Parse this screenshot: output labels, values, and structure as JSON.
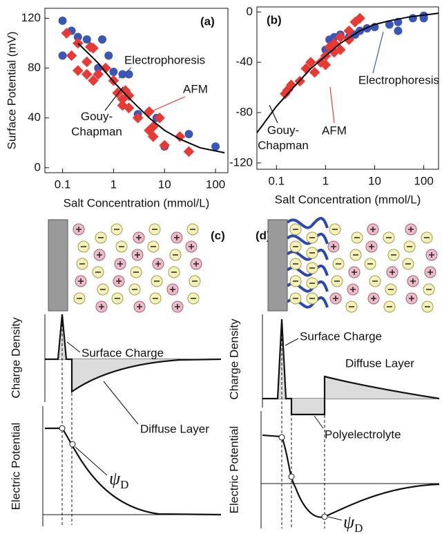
{
  "chart_data": [
    {
      "type": "scatter",
      "panel_label": "(a)",
      "y_label": "Surface Potential (mV)",
      "x_label": "Salt Concentration (mmol/L)",
      "x_scale": "log",
      "xlim": [
        0.045,
        175
      ],
      "ylim": [
        -4,
        128
      ],
      "xticks": [
        0.1,
        1,
        10,
        100
      ],
      "yticks": [
        0,
        40,
        80,
        120
      ],
      "series": [
        {
          "name": "Electrophoresis",
          "color": "#3a57b5",
          "marker": "circle",
          "x": [
            0.1,
            0.1,
            0.15,
            0.2,
            0.3,
            0.5,
            0.6,
            0.8,
            1,
            1.5,
            2,
            3,
            7,
            10,
            30,
            100
          ],
          "values": [
            118,
            90,
            110,
            105,
            103,
            80,
            103,
            90,
            77,
            75,
            75,
            43,
            40,
            17,
            27,
            17
          ]
        },
        {
          "name": "AFM",
          "color": "#e83a35",
          "marker": "diamond",
          "x": [
            0.12,
            0.15,
            0.2,
            0.2,
            0.3,
            0.3,
            0.35,
            0.4,
            0.4,
            0.5,
            0.7,
            1,
            1.2,
            1.5,
            1.5,
            1.7,
            2,
            2,
            3,
            5,
            5,
            6,
            6,
            8,
            10,
            20,
            30
          ],
          "values": [
            108,
            90,
            78,
            100,
            85,
            75,
            97,
            96,
            70,
            75,
            80,
            70,
            60,
            55,
            50,
            62,
            58,
            48,
            40,
            30,
            45,
            33,
            25,
            40,
            18,
            25,
            13
          ]
        },
        {
          "name": "Gouy-Chapman",
          "color": "#000000",
          "marker": "line",
          "x": [
            0.2,
            0.5,
            1,
            2,
            5,
            10,
            20,
            50,
            150
          ],
          "values": [
            100,
            84,
            69,
            56,
            40,
            30,
            23,
            16,
            12
          ]
        }
      ]
    },
    {
      "type": "scatter",
      "panel_label": "(b)",
      "x_label": "Salt Concentration (mmol/L)",
      "x_scale": "log",
      "xlim": [
        0.04,
        200
      ],
      "ylim": [
        -125,
        4
      ],
      "xticks": [
        0.1,
        1,
        10,
        100
      ],
      "yticks": [
        0,
        -40,
        -80,
        -120
      ],
      "series": [
        {
          "name": "Electrophoresis",
          "color": "#3a57b5",
          "marker": "circle",
          "x": [
            1,
            1.2,
            1.5,
            2,
            3,
            4,
            5,
            7,
            10,
            20,
            30,
            30,
            60,
            100,
            100
          ],
          "values": [
            -30,
            -22,
            -20,
            -18,
            -20,
            -18,
            -15,
            -13,
            -12,
            -10,
            -8,
            -15,
            -5,
            -5,
            -3
          ]
        },
        {
          "name": "AFM",
          "color": "#e83a35",
          "marker": "diamond",
          "x": [
            0.15,
            0.17,
            0.2,
            0.3,
            0.4,
            0.5,
            0.6,
            0.8,
            1,
            1,
            1.2,
            1.5,
            1.5,
            2,
            2,
            3,
            3,
            4,
            5
          ],
          "values": [
            -65,
            -62,
            -58,
            -55,
            -45,
            -40,
            -48,
            -40,
            -35,
            -42,
            -28,
            -25,
            -32,
            -20,
            -30,
            -15,
            -22,
            -8,
            -5
          ]
        },
        {
          "name": "Gouy-Chapman",
          "color": "#000000",
          "marker": "line",
          "x": [
            0.04,
            0.1,
            0.2,
            0.5,
            1,
            2,
            5,
            10,
            20,
            50,
            200
          ],
          "values": [
            -96,
            -75,
            -62,
            -45,
            -35,
            -25,
            -15,
            -10,
            -7,
            -4,
            -1
          ]
        }
      ]
    }
  ],
  "diagrams": [
    {
      "panel_label": "(c)",
      "y_labels": [
        "Charge Density",
        "Electric Potential"
      ],
      "annotations": [
        "Surface Charge",
        "Diffuse Layer"
      ],
      "psi": {
        "symbol": "ψ",
        "subscript": "D"
      }
    },
    {
      "panel_label": "(d)",
      "y_labels": [
        "Charge Density",
        "Electric Potential"
      ],
      "annotations": [
        "Surface Charge",
        "Diffuse Layer",
        "Polyelectrolyte"
      ],
      "psi": {
        "symbol": "ψ",
        "subscript": "D"
      }
    }
  ]
}
